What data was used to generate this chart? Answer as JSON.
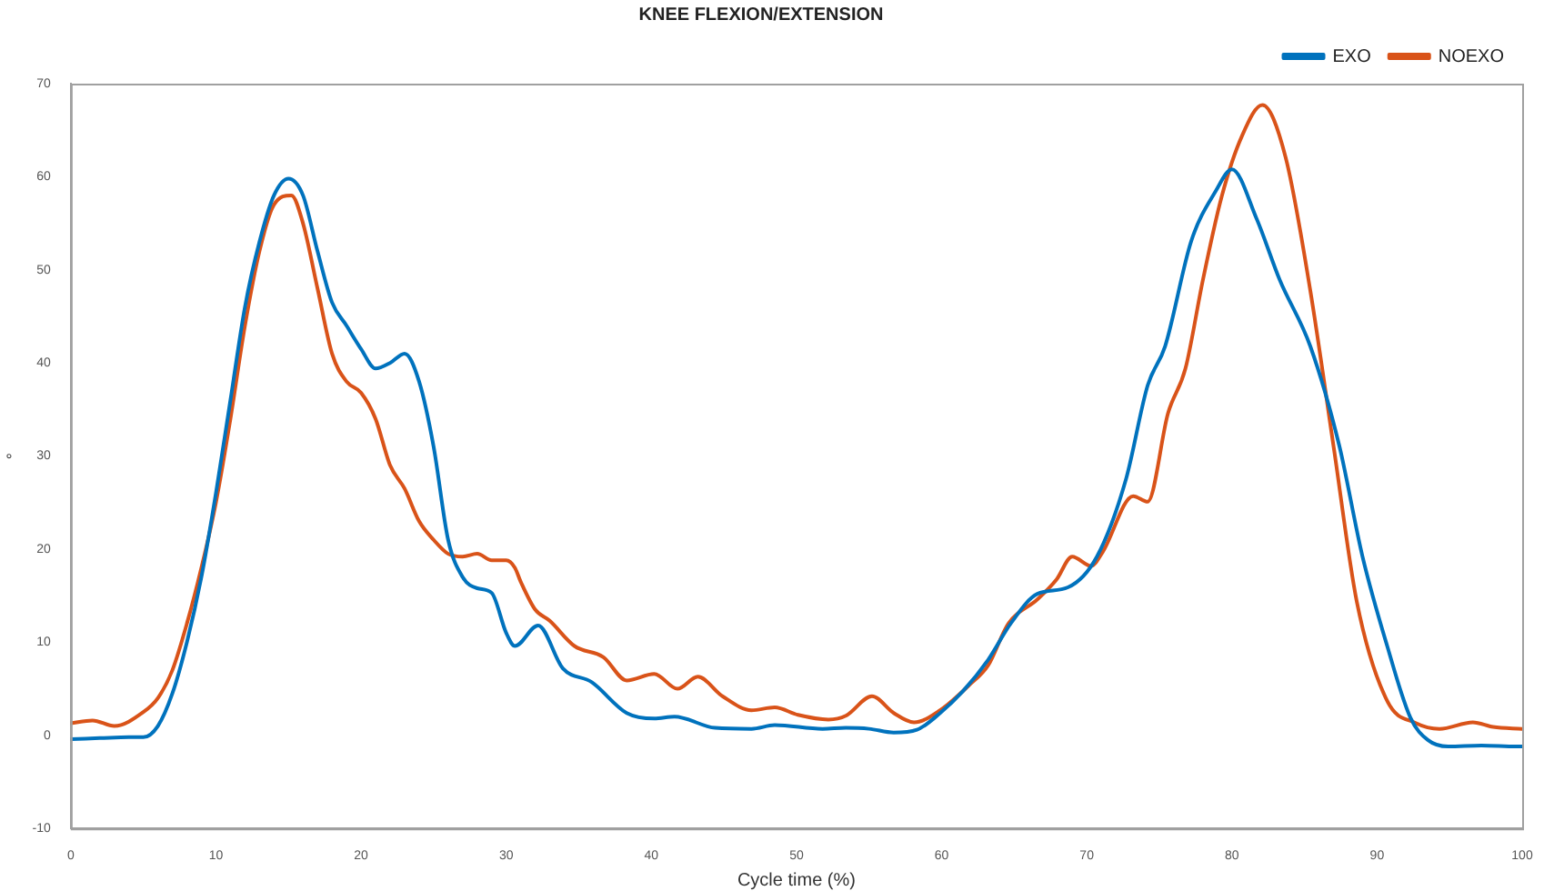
{
  "chart_data": {
    "type": "line",
    "title": "KNEE FLEXION/EXTENSION",
    "xlabel": "Cycle time (%)",
    "ylabel": "°",
    "xlim": [
      0,
      100
    ],
    "xticks": [
      0,
      10,
      20,
      30,
      40,
      50,
      60,
      70,
      80,
      90,
      100
    ],
    "ylim": [
      -10,
      70
    ],
    "yticks": [
      -10,
      0,
      10,
      20,
      30,
      40,
      50,
      60,
      70
    ],
    "grid": false,
    "legend": "top right",
    "marker": "none",
    "line_style": "solid",
    "series": [
      {
        "name": "EXO",
        "color": "#0072bd",
        "x": [
          0,
          2,
          4,
          5,
          6,
          7,
          8,
          9,
          10,
          11,
          12,
          13,
          14,
          15,
          16,
          17,
          18,
          19,
          20,
          21,
          22,
          23,
          24,
          25,
          26,
          27,
          28,
          29,
          30,
          30.6,
          32.2,
          33.9,
          35.9,
          38.3,
          40.2,
          41.6,
          44.4,
          46.9,
          48.5,
          51.8,
          53.4,
          55,
          56.7,
          58.3,
          59.9,
          61.5,
          63.2,
          64.8,
          66.6,
          68.7,
          70.7,
          72.7,
          74.2,
          75.4,
          77.2,
          78.9,
          80,
          81.7,
          83.3,
          85.4,
          87.4,
          89,
          90.7,
          92.3,
          93.5,
          94.9,
          97.2,
          99.6,
          100
        ],
        "values": [
          -0.4,
          -0.3,
          -0.2,
          -0.2,
          1,
          4.5,
          10,
          17,
          26,
          36,
          46,
          53,
          58,
          59.8,
          58,
          52,
          46.5,
          44,
          41.5,
          39.4,
          40,
          41,
          38,
          31,
          21,
          17,
          15.8,
          15.3,
          11,
          9.6,
          11.8,
          7.2,
          5.7,
          2.4,
          1.8,
          2,
          0.8,
          0.7,
          1.1,
          0.7,
          0.8,
          0.7,
          0.3,
          0.6,
          2.4,
          4.8,
          8.1,
          12.1,
          15.2,
          15.9,
          19.2,
          27.5,
          37.6,
          41.8,
          53.1,
          58.5,
          60.8,
          55.5,
          48.9,
          41.8,
          31.1,
          19.2,
          9.6,
          1.9,
          -0.5,
          -1.2,
          -1.1,
          -1.2,
          -1.2
        ]
      },
      {
        "name": "NOEXO",
        "color": "#d95319",
        "x": [
          0,
          1.5,
          3,
          5,
          6,
          7,
          8,
          9,
          10,
          11,
          12,
          13,
          14,
          15.2,
          16,
          17,
          18,
          19,
          20,
          21,
          22,
          23,
          24,
          25,
          26,
          27,
          28,
          29,
          30,
          30.6,
          31,
          32,
          33,
          34.7,
          36.7,
          38.3,
          40.2,
          41.8,
          43.2,
          44.9,
          46.9,
          48.5,
          50.1,
          52.2,
          53.4,
          55.2,
          56.7,
          58.1,
          59.9,
          61.9,
          63.2,
          64.6,
          66.6,
          67.9,
          69,
          70.3,
          71.1,
          73.2,
          74.2,
          75.6,
          76.8,
          78,
          79.3,
          80.7,
          82.1,
          83.7,
          85.4,
          87,
          88.6,
          90.7,
          92.7,
          94.3,
          96.6,
          98,
          100
        ],
        "values": [
          1.3,
          1.6,
          1,
          2.5,
          4,
          7,
          12,
          18,
          25,
          34,
          44,
          52,
          57,
          58,
          55,
          48,
          41,
          38,
          36.8,
          34,
          29,
          26.5,
          23,
          21,
          19.5,
          19.2,
          19.5,
          18.8,
          18.8,
          18,
          16.5,
          13.5,
          12.3,
          9.6,
          8.4,
          5.9,
          6.6,
          5,
          6.3,
          4.2,
          2.7,
          3,
          2.2,
          1.7,
          2.1,
          4.2,
          2.4,
          1.4,
          2.7,
          5.4,
          7.5,
          12,
          14.6,
          16.7,
          19.2,
          18.2,
          19.7,
          25.7,
          25.1,
          34.6,
          39.4,
          48.9,
          57.9,
          64.4,
          67.7,
          62.1,
          47.8,
          31.1,
          14.4,
          3.7,
          1.3,
          0.7,
          1.4,
          0.9,
          0.7
        ]
      }
    ]
  }
}
